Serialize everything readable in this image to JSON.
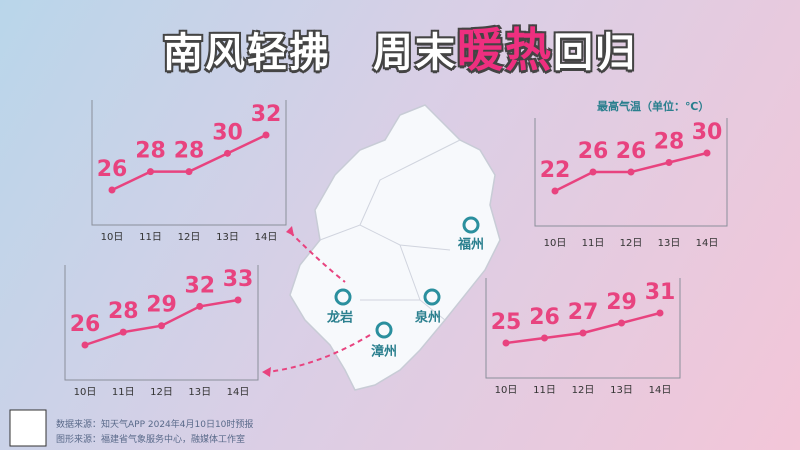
{
  "header": {
    "title_parts": [
      "南风轻拂",
      "周末",
      "暖热",
      "回归"
    ]
  },
  "unit_note": "最高气温（单位：℃）",
  "map_labels": [
    "福州",
    "龙岩",
    "泉州",
    "漳州"
  ],
  "footer": [
    "数据来源：知天气APP  2024年4月10日10时预报",
    "图形来源：福建省气象服务中心，融媒体工作室"
  ],
  "chart_data": [
    {
      "type": "line",
      "categories": [
        "10日",
        "11日",
        "12日",
        "13日",
        "14日"
      ],
      "values": [
        26,
        28,
        28,
        30,
        32
      ],
      "color": "#e8437f"
    },
    {
      "type": "line",
      "categories": [
        "10日",
        "11日",
        "12日",
        "13日",
        "14日"
      ],
      "values": [
        26,
        28,
        29,
        32,
        33
      ],
      "color": "#e8437f"
    },
    {
      "type": "line",
      "categories": [
        "10日",
        "11日",
        "12日",
        "13日",
        "14日"
      ],
      "values": [
        22,
        26,
        26,
        28,
        30
      ],
      "color": "#e8437f"
    },
    {
      "type": "line",
      "categories": [
        "10日",
        "11日",
        "12日",
        "13日",
        "14日"
      ],
      "values": [
        25,
        26,
        27,
        29,
        31
      ],
      "color": "#e8437f"
    }
  ]
}
